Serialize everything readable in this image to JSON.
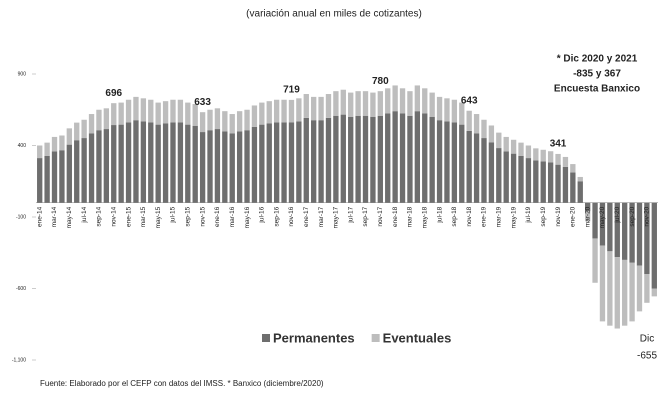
{
  "chart_data": {
    "type": "stacked_bar",
    "title": "(variación anual en miles de cotizantes)",
    "note_lines": [
      "* Dic 2020 y 2021",
      "-835 y 367",
      "Encuesta Banxico"
    ],
    "end_label": [
      "Dic",
      "-655"
    ],
    "source": "Fuente: Elaborado por el CEFP con datos del IMSS. * Banxico  (diciembre/2020)",
    "categories": [
      "ene-14",
      null,
      "mar-14",
      null,
      "may-14",
      null,
      "jul-14",
      null,
      "sep-14",
      null,
      "nov-14",
      null,
      "ene-15",
      null,
      "mar-15",
      null,
      "may-15",
      null,
      "jul-15",
      null,
      "sep-15",
      null,
      "nov-15",
      null,
      "ene-16",
      null,
      "mar-16",
      null,
      "may-16",
      null,
      "jul-16",
      null,
      "sep-16",
      null,
      "nov-16",
      null,
      "ene-17",
      null,
      "mar-17",
      null,
      "may-17",
      null,
      "jul-17",
      null,
      "sep-17",
      null,
      "nov-17",
      null,
      "ene-18",
      null,
      "mar-18",
      null,
      "may-18",
      null,
      "jul-18",
      null,
      "sep-18",
      null,
      "nov-18",
      null,
      "ene-19",
      null,
      "mar-19",
      null,
      "may-19",
      null,
      "jul-19",
      null,
      "sep-19",
      null,
      "nov-19",
      null,
      "ene-20",
      null,
      "mar-20",
      null,
      "may-20",
      null,
      "jul-20",
      null,
      "sep-20",
      null,
      "nov-20",
      null
    ],
    "series": [
      {
        "name": "Permanentes",
        "color": "#6e6e6e",
        "values": [
          312,
          328,
          359,
          367,
          406,
          437,
          452,
          484,
          507,
          515,
          543,
          546,
          562,
          577,
          569,
          562,
          546,
          554,
          562,
          562,
          546,
          538,
          494,
          507,
          515,
          499,
          484,
          499,
          507,
          530,
          546,
          554,
          562,
          562,
          561,
          569,
          593,
          577,
          577,
          593,
          608,
          616,
          601,
          608,
          608,
          601,
          608,
          624,
          640,
          624,
          608,
          640,
          624,
          601,
          577,
          569,
          562,
          546,
          502,
          484,
          452,
          421,
          382,
          359,
          343,
          328,
          312,
          296,
          289,
          281,
          266,
          250,
          211,
          150,
          -60,
          -250,
          -300,
          -340,
          -380,
          -400,
          -420,
          -440,
          -500,
          -600
        ]
      },
      {
        "name": "Eventuales",
        "color": "#bdbdbd",
        "values": [
          88,
          92,
          101,
          103,
          114,
          123,
          128,
          136,
          143,
          145,
          153,
          154,
          158,
          163,
          161,
          158,
          154,
          156,
          158,
          158,
          154,
          152,
          139,
          143,
          145,
          141,
          136,
          141,
          143,
          150,
          154,
          156,
          158,
          158,
          158,
          161,
          167,
          163,
          163,
          167,
          172,
          174,
          169,
          172,
          172,
          169,
          172,
          176,
          180,
          176,
          172,
          180,
          176,
          169,
          163,
          161,
          158,
          154,
          141,
          136,
          128,
          119,
          108,
          101,
          97,
          92,
          88,
          84,
          81,
          79,
          75,
          70,
          59,
          30,
          -70,
          -310,
          -530,
          -520,
          -500,
          -460,
          -410,
          -320,
          -200,
          -55
        ]
      }
    ],
    "annotations": [
      {
        "at": 10,
        "text": "696"
      },
      {
        "at": 22,
        "text": "633"
      },
      {
        "at": 34,
        "text": "719"
      },
      {
        "at": 46,
        "text": "780"
      },
      {
        "at": 58,
        "text": "643"
      },
      {
        "at": 70,
        "text": "341"
      }
    ],
    "ylim": [
      -1100,
      900
    ],
    "yticks": [
      900,
      400,
      -100,
      -600,
      {
        "value": -1100,
        "label": "-1,100"
      }
    ],
    "legend": "center"
  }
}
